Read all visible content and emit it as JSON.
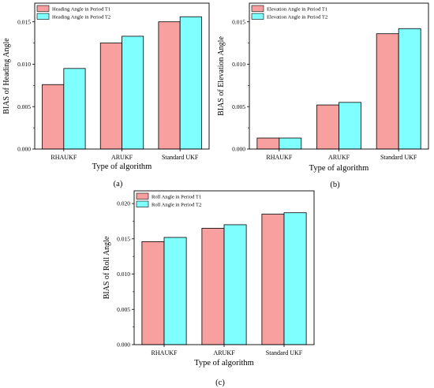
{
  "colors": {
    "series_t1": "#F8A0A0",
    "series_t2": "#7FFFFF",
    "edge": "#000000"
  },
  "chart_data": [
    {
      "type": "bar",
      "panel_label": "(a)",
      "categories": [
        "RHAUKF",
        "ARUKF",
        "Standard UKF"
      ],
      "series": [
        {
          "name": "Heading Angle in Period T1",
          "values": [
            0.0076,
            0.0125,
            0.015
          ]
        },
        {
          "name": "Heading Angle in Period T2",
          "values": [
            0.0095,
            0.0133,
            0.0156
          ]
        }
      ],
      "xlabel": "Type of algorithm",
      "ylabel": "BIAS of Heading Angle",
      "ylim": [
        0,
        0.0172
      ],
      "yticks": [
        "0.000",
        "0.005",
        "0.010",
        "0.015"
      ],
      "ytick_values": [
        0,
        0.005,
        0.01,
        0.015
      ],
      "legend_position": "top-left",
      "grid": false
    },
    {
      "type": "bar",
      "panel_label": "(b)",
      "categories": [
        "RHAUKF",
        "ARUKF",
        "Standard UKF"
      ],
      "series": [
        {
          "name": "Elevation Angle in Period T1",
          "values": [
            0.0013,
            0.0052,
            0.0136
          ]
        },
        {
          "name": "Elevation Angle in Period T2",
          "values": [
            0.0013,
            0.0055,
            0.0142
          ]
        }
      ],
      "xlabel": "Type of algorithm",
      "ylabel": "BIAS of Elevation Angle",
      "ylim": [
        0,
        0.0172
      ],
      "yticks": [
        "0.000",
        "0.005",
        "0.010",
        "0.015"
      ],
      "ytick_values": [
        0,
        0.005,
        0.01,
        0.015
      ],
      "legend_position": "top-left",
      "grid": false
    },
    {
      "type": "bar",
      "panel_label": "(c)",
      "categories": [
        "RHAUKF",
        "ARUKF",
        "Standard UKF"
      ],
      "series": [
        {
          "name": "Roll Angle in Period T1",
          "values": [
            0.0146,
            0.0165,
            0.0185
          ]
        },
        {
          "name": "Roll Angle in Period T2",
          "values": [
            0.0152,
            0.017,
            0.0187
          ]
        }
      ],
      "xlabel": "Type of algorithm",
      "ylabel": "BIAS of Roll Angle",
      "ylim": [
        0,
        0.0218
      ],
      "yticks": [
        "0.000",
        "0.005",
        "0.010",
        "0.015",
        "0.020"
      ],
      "ytick_values": [
        0,
        0.005,
        0.01,
        0.015,
        0.02
      ],
      "legend_position": "top-left",
      "grid": false
    }
  ]
}
